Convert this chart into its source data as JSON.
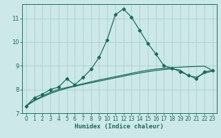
{
  "xlabel": "Humidex (Indice chaleur)",
  "ylabel": "",
  "bg_color": "#cce8e8",
  "grid_color": "#aad0d0",
  "line_color": "#1a6b5a",
  "xlim": [
    -0.5,
    23.5
  ],
  "ylim": [
    7.0,
    11.6
  ],
  "yticks": [
    7,
    8,
    9,
    10,
    11
  ],
  "xticks": [
    0,
    1,
    2,
    3,
    4,
    5,
    6,
    7,
    8,
    9,
    10,
    11,
    12,
    13,
    14,
    15,
    16,
    17,
    18,
    19,
    20,
    21,
    22,
    23
  ],
  "series1_x": [
    0,
    1,
    2,
    3,
    4,
    5,
    6,
    7,
    8,
    9,
    10,
    11,
    12,
    13,
    14,
    15,
    16,
    17,
    18,
    19,
    20,
    21,
    22,
    23
  ],
  "series1_y": [
    7.3,
    7.65,
    7.8,
    8.0,
    8.1,
    8.45,
    8.2,
    8.5,
    8.85,
    9.35,
    10.1,
    11.15,
    11.4,
    11.05,
    10.5,
    9.95,
    9.5,
    9.0,
    8.9,
    8.75,
    8.6,
    8.45,
    8.75,
    8.8
  ],
  "series2_x": [
    0,
    1,
    2,
    3,
    4,
    5,
    6,
    7,
    8,
    9,
    10,
    11,
    12,
    13,
    14,
    15,
    16,
    17,
    18,
    19,
    20,
    21,
    22,
    23
  ],
  "series2_y": [
    7.3,
    7.55,
    7.72,
    7.88,
    8.0,
    8.08,
    8.16,
    8.24,
    8.32,
    8.4,
    8.47,
    8.54,
    8.61,
    8.68,
    8.75,
    8.81,
    8.86,
    8.89,
    8.92,
    8.94,
    8.96,
    8.97,
    8.98,
    8.8
  ],
  "series3_x": [
    0,
    1,
    2,
    3,
    4,
    5,
    6,
    7,
    8,
    9,
    10,
    11,
    12,
    13,
    14,
    15,
    16,
    17,
    18,
    19,
    20,
    21,
    22,
    23
  ],
  "series3_y": [
    7.3,
    7.52,
    7.68,
    7.83,
    7.95,
    8.05,
    8.13,
    8.21,
    8.28,
    8.35,
    8.42,
    8.49,
    8.56,
    8.63,
    8.69,
    8.75,
    8.8,
    8.84,
    8.87,
    8.82,
    8.58,
    8.52,
    8.68,
    8.78
  ]
}
